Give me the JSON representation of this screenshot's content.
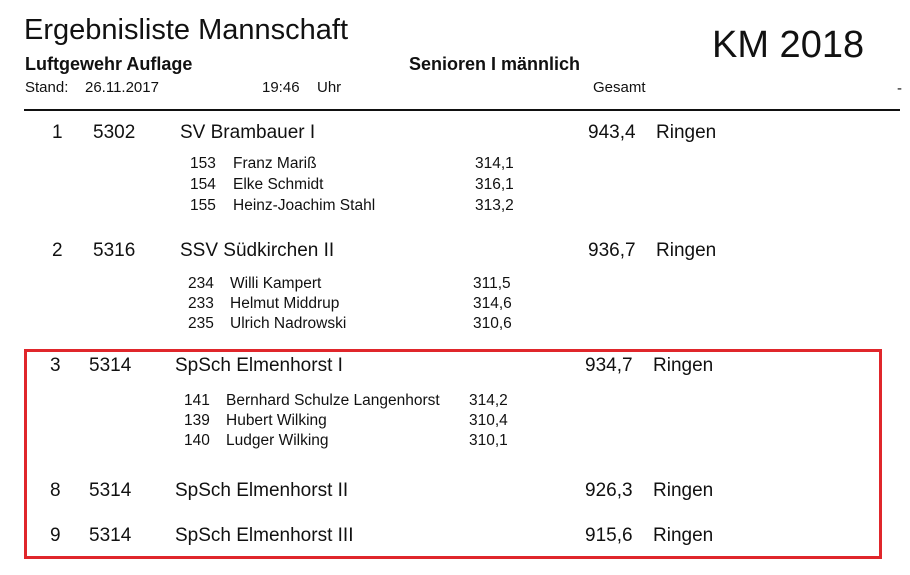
{
  "header": {
    "title": "Ergebnisliste Mannschaft",
    "event": "KM 2018",
    "discipline": "Luftgewehr Auflage",
    "class": "Senioren I männlich",
    "stand_label": "Stand:",
    "date": "26.11.2017",
    "time": "19:46",
    "time_unit": "Uhr",
    "total_label": "Gesamt",
    "edge_mark": "-"
  },
  "teams": [
    {
      "rank": "1",
      "club_id": "5302",
      "name": "SV Brambauer I",
      "total": "943,4",
      "unit": "Ringen",
      "members": [
        {
          "start_no": "153",
          "name": "Franz Mariß",
          "score": "314,1"
        },
        {
          "start_no": "154",
          "name": "Elke Schmidt",
          "score": "316,1"
        },
        {
          "start_no": "155",
          "name": "Heinz-Joachim Stahl",
          "score": "313,2"
        }
      ]
    },
    {
      "rank": "2",
      "club_id": "5316",
      "name": "SSV Südkirchen II",
      "total": "936,7",
      "unit": "Ringen",
      "members": [
        {
          "start_no": "234",
          "name": "Willi Kampert",
          "score": "311,5"
        },
        {
          "start_no": "233",
          "name": "Helmut Middrup",
          "score": "314,6"
        },
        {
          "start_no": "235",
          "name": "Ulrich Nadrowski",
          "score": "310,6"
        }
      ]
    },
    {
      "rank": "3",
      "club_id": "5314",
      "name": "SpSch Elmenhorst I",
      "total": "934,7",
      "unit": "Ringen",
      "members": [
        {
          "start_no": "141",
          "name": "Bernhard Schulze Langenhorst",
          "score": "314,2"
        },
        {
          "start_no": "139",
          "name": "Hubert Wilking",
          "score": "310,4"
        },
        {
          "start_no": "140",
          "name": "Ludger Wilking",
          "score": "310,1"
        }
      ]
    },
    {
      "rank": "8",
      "club_id": "5314",
      "name": "SpSch Elmenhorst II",
      "total": "926,3",
      "unit": "Ringen",
      "members": []
    },
    {
      "rank": "9",
      "club_id": "5314",
      "name": "SpSch Elmenhorst III",
      "total": "915,6",
      "unit": "Ringen",
      "members": []
    }
  ],
  "highlight_color": "#e0262b"
}
